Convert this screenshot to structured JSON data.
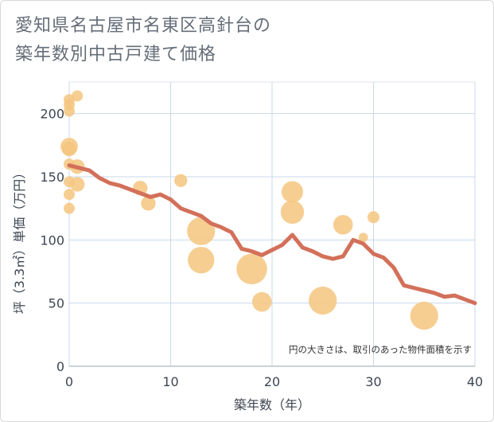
{
  "title_lines": [
    "愛知県名古屋市名東区高針台の",
    "築年数別中古戸建て価格"
  ],
  "chart_data": {
    "type": "scatter",
    "title": "愛知県名古屋市名東区高針台の築年数別中古戸建て価格",
    "xlabel": "築年数（年）",
    "ylabel": "坪（3.3㎡）単価（万円）",
    "xlim": [
      0,
      40
    ],
    "ylim": [
      0,
      225
    ],
    "xticks": [
      0,
      10,
      20,
      30,
      40
    ],
    "yticks": [
      0,
      50,
      100,
      150,
      200
    ],
    "grid": true,
    "note": "円の大きさは、取引のあった物件面積を示す",
    "bubble_color": "#f5c57f",
    "line_color": "#d3705a",
    "bubbles": [
      {
        "x": 0,
        "y": 211,
        "s": 1
      },
      {
        "x": 0,
        "y": 207,
        "s": 1
      },
      {
        "x": 0,
        "y": 202,
        "s": 1
      },
      {
        "x": 0,
        "y": 174,
        "s": 3
      },
      {
        "x": 0,
        "y": 172,
        "s": 2
      },
      {
        "x": 0,
        "y": 160,
        "s": 1
      },
      {
        "x": 0,
        "y": 146,
        "s": 1
      },
      {
        "x": 0,
        "y": 136,
        "s": 1
      },
      {
        "x": 0,
        "y": 125,
        "s": 1
      },
      {
        "x": 0.8,
        "y": 214,
        "s": 1
      },
      {
        "x": 0.8,
        "y": 158,
        "s": 2
      },
      {
        "x": 0.8,
        "y": 144,
        "s": 2
      },
      {
        "x": 7,
        "y": 141,
        "s": 2
      },
      {
        "x": 7.8,
        "y": 129,
        "s": 2
      },
      {
        "x": 11,
        "y": 147,
        "s": 1.5
      },
      {
        "x": 13,
        "y": 107,
        "s": 9
      },
      {
        "x": 13,
        "y": 84,
        "s": 8
      },
      {
        "x": 18,
        "y": 77,
        "s": 11
      },
      {
        "x": 19,
        "y": 51,
        "s": 4
      },
      {
        "x": 22,
        "y": 138,
        "s": 5
      },
      {
        "x": 22,
        "y": 122,
        "s": 6
      },
      {
        "x": 25,
        "y": 52,
        "s": 9
      },
      {
        "x": 27,
        "y": 112,
        "s": 4
      },
      {
        "x": 29,
        "y": 102,
        "s": 0.6
      },
      {
        "x": 30,
        "y": 118,
        "s": 1.2
      },
      {
        "x": 35,
        "y": 40,
        "s": 9
      }
    ],
    "line": {
      "x": [
        0,
        1,
        2,
        3,
        4,
        5,
        6,
        7,
        8,
        9,
        10,
        11,
        12,
        13,
        14,
        15,
        16,
        17,
        18,
        19,
        20,
        21,
        22,
        23,
        24,
        25,
        26,
        27,
        28,
        29,
        30,
        31,
        32,
        33,
        34,
        35,
        36,
        37,
        38,
        39,
        40
      ],
      "y": [
        159,
        157,
        155,
        149,
        145,
        143,
        140,
        137,
        134,
        136,
        132,
        125,
        122,
        119,
        113,
        110,
        106,
        93,
        91,
        88,
        92,
        96,
        104,
        94,
        91,
        87,
        85,
        87,
        100,
        97,
        89,
        86,
        78,
        64,
        62,
        60,
        58,
        55,
        56,
        53,
        50
      ]
    }
  }
}
